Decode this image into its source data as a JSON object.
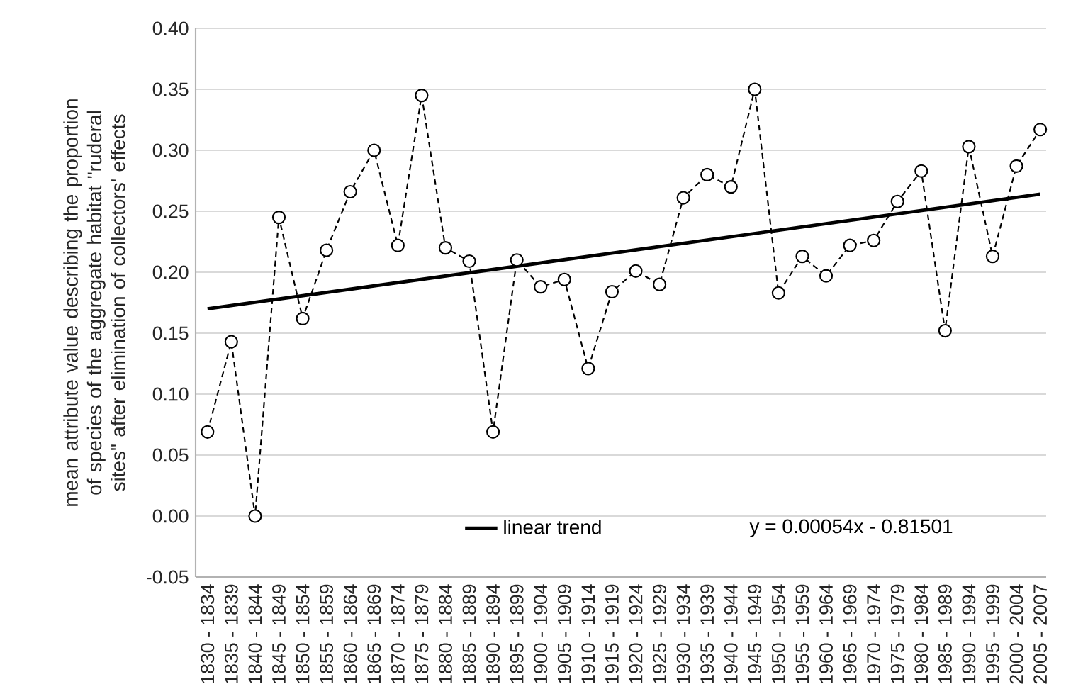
{
  "chart_data": {
    "type": "line",
    "ylabel": "mean attribute value describing the proportion of species of the aggregate habitat \"ruderal sites\" after elimination of collectors' effects",
    "categories": [
      "1830 - 1834",
      "1835 - 1839",
      "1840 - 1844",
      "1845 - 1849",
      "1850 - 1854",
      "1855 - 1859",
      "1860 - 1864",
      "1865 - 1869",
      "1870 - 1874",
      "1875 - 1879",
      "1880 - 1884",
      "1885 - 1889",
      "1890 - 1894",
      "1895 - 1899",
      "1900 - 1904",
      "1905 - 1909",
      "1910 - 1914",
      "1915 - 1919",
      "1920 - 1924",
      "1925 - 1929",
      "1930 - 1934",
      "1935 - 1939",
      "1940 - 1944",
      "1945 - 1949",
      "1950 - 1954",
      "1955 - 1959",
      "1960 - 1964",
      "1965 - 1969",
      "1970 - 1974",
      "1975 - 1979",
      "1980 - 1984",
      "1985 - 1989",
      "1990 - 1994",
      "1995 - 1999",
      "2000 - 2004",
      "2005 - 2007"
    ],
    "series": [
      {
        "color": "#000000",
        "marker": "circle",
        "line_style": "dashed",
        "values": [
          0.069,
          0.143,
          0.0,
          0.245,
          0.162,
          0.218,
          0.266,
          0.3,
          0.222,
          0.345,
          0.22,
          0.209,
          0.069,
          0.21,
          0.188,
          0.194,
          0.121,
          0.184,
          0.201,
          0.19,
          0.261,
          0.28,
          0.27,
          0.35,
          0.183,
          0.213,
          0.197,
          0.222,
          0.226,
          0.258,
          0.283,
          0.152,
          0.303,
          0.213,
          0.287,
          0.317
        ]
      },
      {
        "name": "linear trend",
        "color": "#000000",
        "marker": "none",
        "line_style": "solid",
        "values": [
          0.17,
          null,
          null,
          null,
          null,
          null,
          null,
          null,
          null,
          null,
          null,
          null,
          null,
          null,
          null,
          null,
          null,
          null,
          null,
          null,
          null,
          null,
          null,
          null,
          null,
          null,
          null,
          null,
          null,
          null,
          null,
          null,
          null,
          null,
          null,
          0.264
        ]
      }
    ],
    "ylim": [
      -0.05,
      0.4
    ],
    "yticks": [
      {
        "value": -0.05,
        "label": "-0.05"
      },
      {
        "value": 0,
        "label": "0.00"
      },
      {
        "value": 0.05,
        "label": "0.05"
      },
      {
        "value": 0.1,
        "label": "0.10"
      },
      {
        "value": 0.15,
        "label": "0.15"
      },
      {
        "value": 0.2,
        "label": "0.20"
      },
      {
        "value": 0.25,
        "label": "0.25"
      },
      {
        "value": 0.3,
        "label": "0.30"
      },
      {
        "value": 0.35,
        "label": "0.35"
      },
      {
        "value": 0.4,
        "label": "0.40"
      }
    ],
    "grid": "y",
    "legend": "bottom",
    "annotations": [
      "y = 0.00054x - 0.81501"
    ]
  }
}
